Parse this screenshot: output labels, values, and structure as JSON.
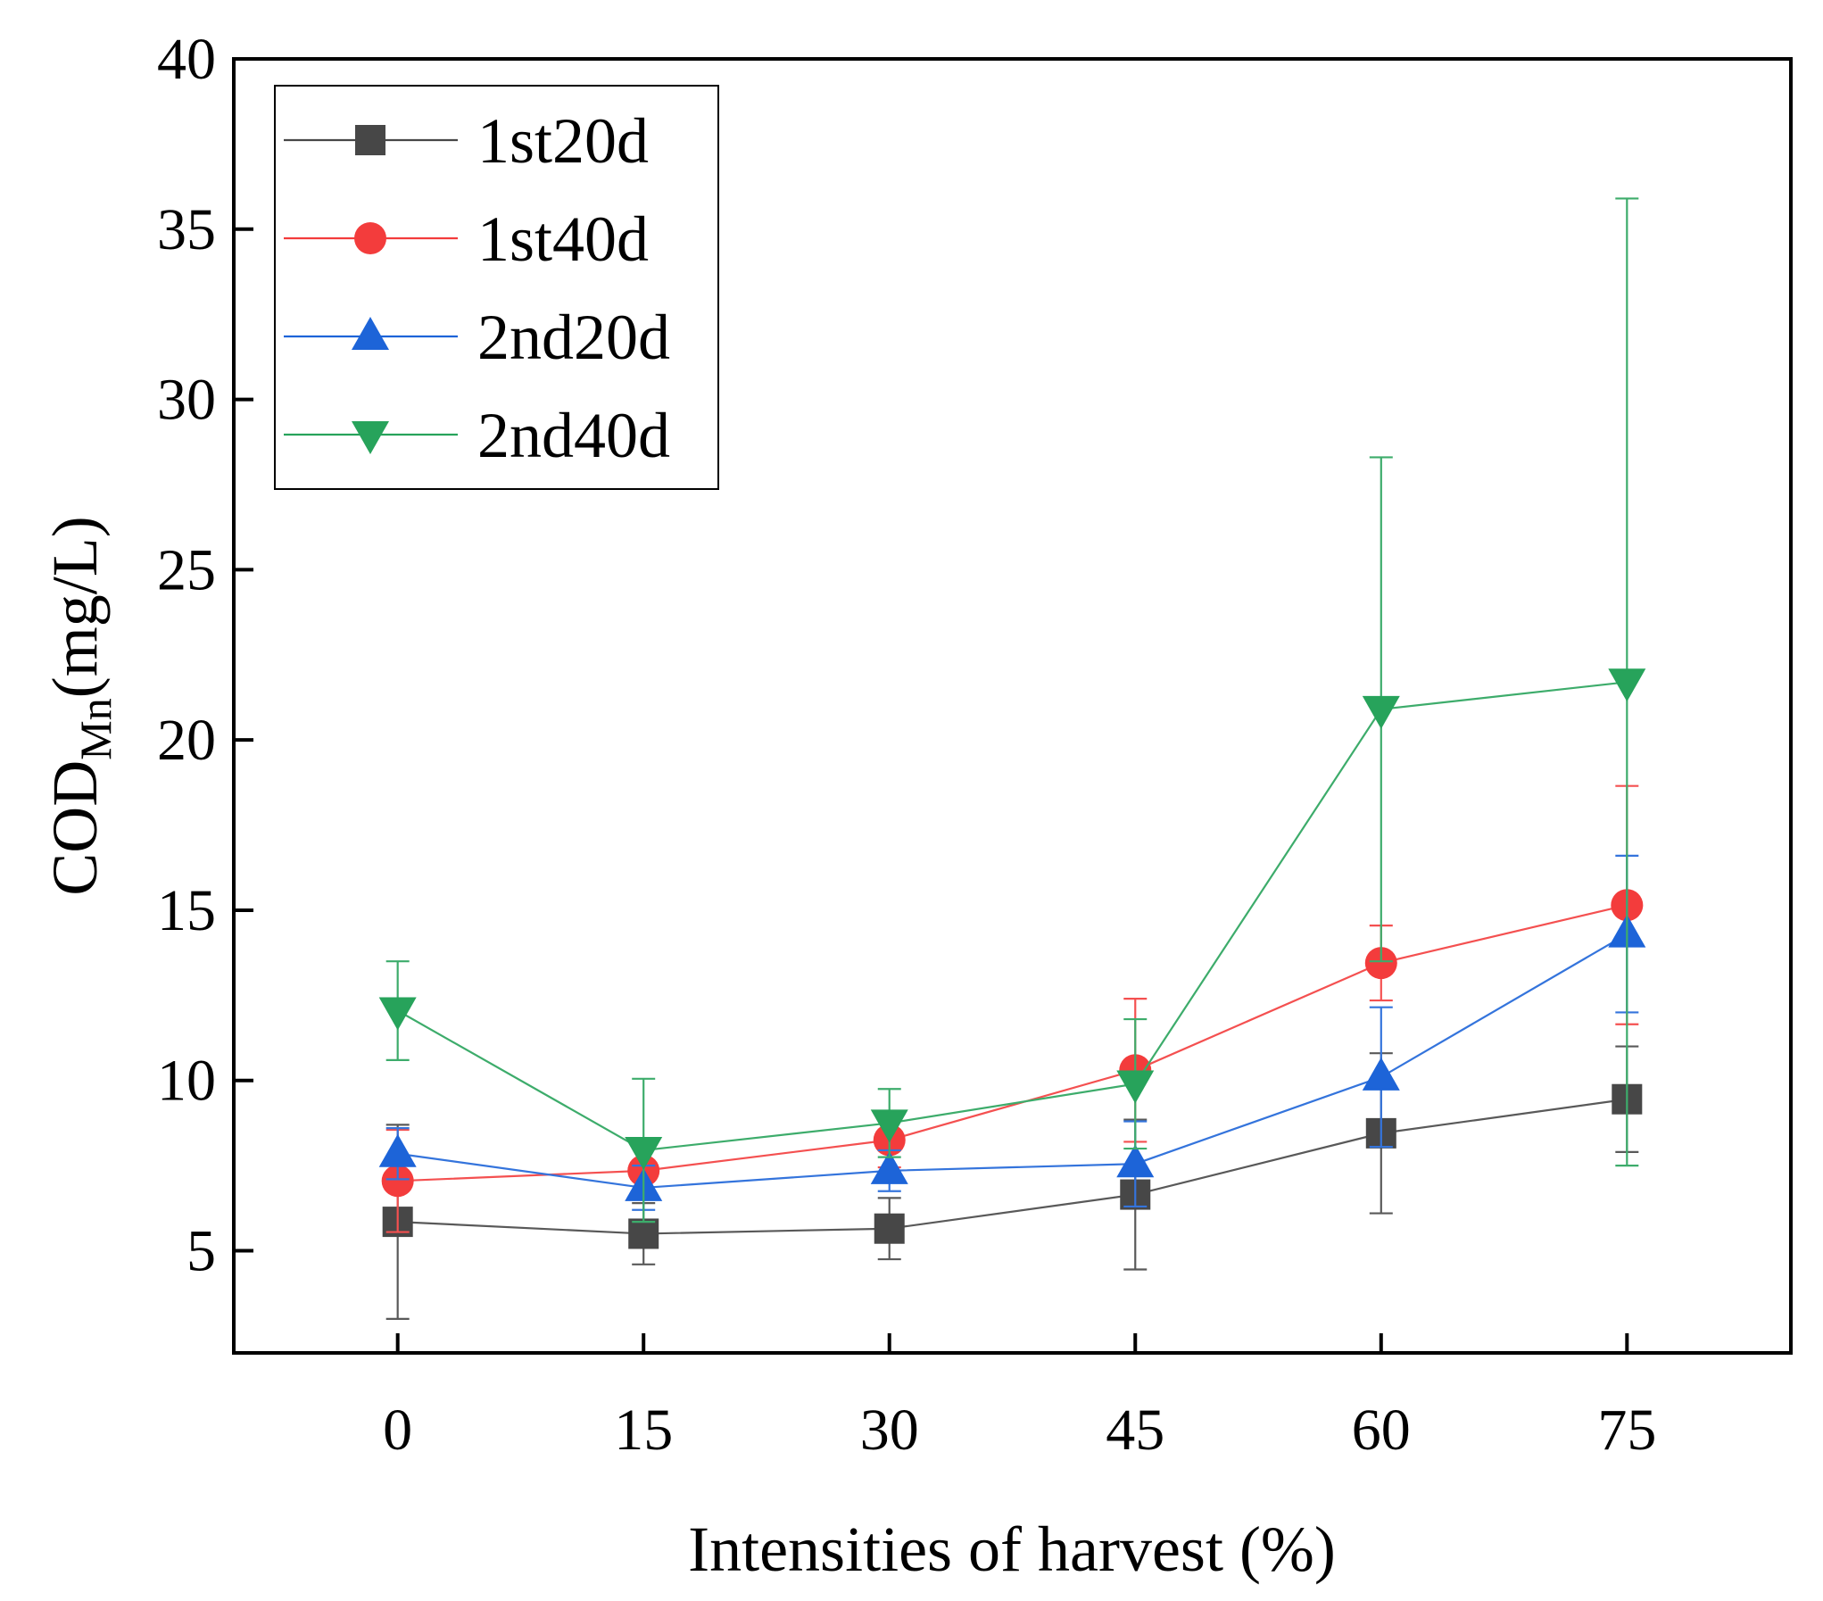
{
  "chart_data": {
    "type": "line",
    "xlabel": "Intensities of harvest (%)",
    "ylabel": {
      "main": "COD",
      "sub": "Mn",
      "unit": "(mg/L)"
    },
    "x": [
      0,
      15,
      30,
      45,
      60,
      75
    ],
    "x_ticks": [
      "0",
      "15",
      "30",
      "45",
      "60",
      "75"
    ],
    "xlim": [
      -10,
      85
    ],
    "ylim": [
      2,
      40
    ],
    "y_ticks": [
      5,
      10,
      15,
      20,
      25,
      30,
      35,
      40
    ],
    "y_tick_labels": [
      "5",
      "10",
      "15",
      "20",
      "25",
      "30",
      "35",
      "40"
    ],
    "grid": false,
    "legend_position": "top-left",
    "series": [
      {
        "name": "1st20d",
        "color": "#474747",
        "marker": "square",
        "values": [
          5.85,
          5.5,
          5.65,
          6.65,
          8.45,
          9.45
        ],
        "errors": [
          2.85,
          0.9,
          0.9,
          2.2,
          2.35,
          1.55
        ]
      },
      {
        "name": "1st40d",
        "color": "#f33c3c",
        "marker": "circle",
        "values": [
          7.05,
          7.35,
          8.25,
          10.3,
          13.45,
          15.15
        ],
        "errors": [
          1.5,
          0.75,
          0.8,
          2.1,
          1.1,
          3.5
        ]
      },
      {
        "name": "2nd20d",
        "color": "#1d64d8",
        "marker": "triangle-up",
        "values": [
          7.85,
          6.85,
          7.35,
          7.55,
          10.1,
          14.3
        ],
        "errors": [
          0.75,
          0.65,
          0.6,
          1.25,
          2.05,
          2.3
        ]
      },
      {
        "name": "2nd40d",
        "color": "#27a35b",
        "marker": "triangle-down",
        "values": [
          12.05,
          7.95,
          8.75,
          9.9,
          20.9,
          21.7
        ],
        "errors": [
          1.45,
          2.1,
          1.0,
          1.9,
          7.4,
          14.2
        ]
      }
    ]
  }
}
